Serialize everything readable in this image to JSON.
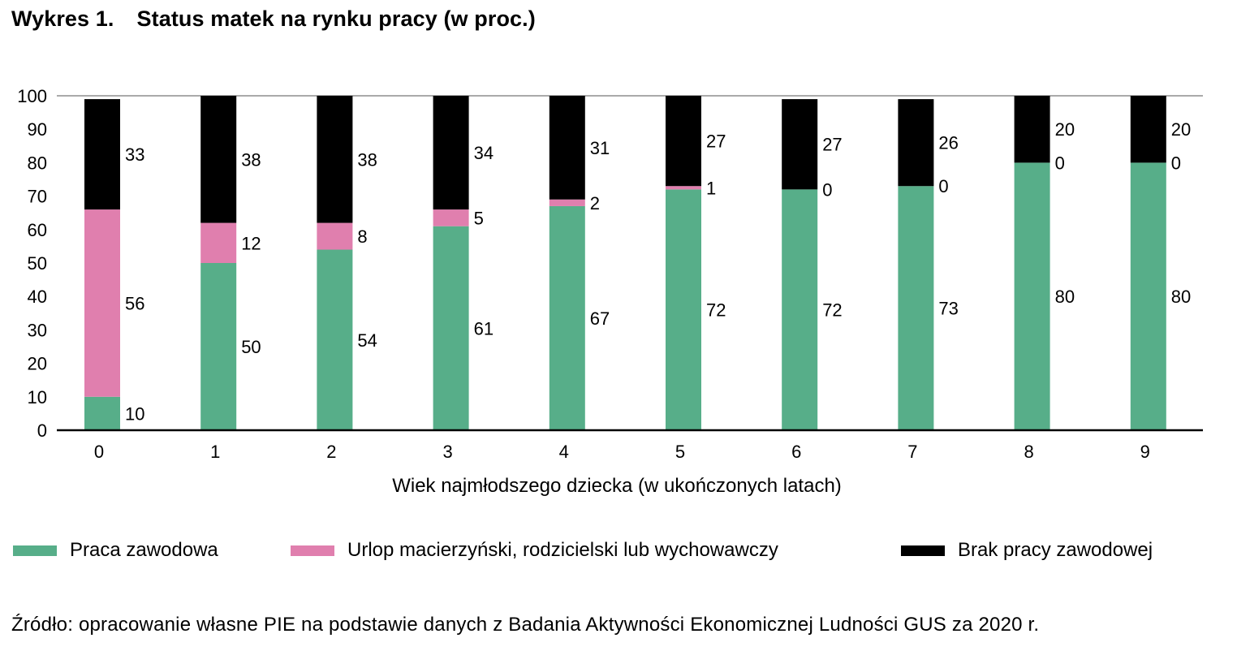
{
  "title_number": "Wykres 1.",
  "title_text": "Status matek na rynku pracy (w proc.)",
  "source": "Źródło: opracowanie własne PIE na podstawie danych z Badania Aktywności Ekonomicznej Ludności GUS za 2020 r.",
  "colors": {
    "praca": "#57ae89",
    "urlop": "#e07fae",
    "brak": "#000000"
  },
  "legend": [
    {
      "label": "Praca zawodowa",
      "color": "#57ae89"
    },
    {
      "label": "Urlop macierzyński, rodzicielski lub wychowawczy",
      "color": "#e07fae"
    },
    {
      "label": "Brak pracy zawodowej",
      "color": "#000000"
    }
  ],
  "chart_data": {
    "type": "bar",
    "stacked": true,
    "title": "Status matek na rynku pracy (w proc.)",
    "xlabel": "Wiek najmłodszego dziecka (w ukończonych latach)",
    "ylabel": "",
    "ylim": [
      0,
      100
    ],
    "yticks": [
      0,
      10,
      20,
      30,
      40,
      50,
      60,
      70,
      80,
      90,
      100
    ],
    "grid": false,
    "legend_position": "bottom",
    "categories": [
      "0",
      "1",
      "2",
      "3",
      "4",
      "5",
      "6",
      "7",
      "8",
      "9"
    ],
    "series": [
      {
        "name": "Praca zawodowa",
        "color": "#57ae89",
        "values": [
          10,
          50,
          54,
          61,
          67,
          72,
          72,
          73,
          80,
          80
        ]
      },
      {
        "name": "Urlop macierzyński, rodzicielski lub wychowawczy",
        "color": "#e07fae",
        "values": [
          56,
          12,
          8,
          5,
          2,
          1,
          0,
          0,
          0,
          0
        ]
      },
      {
        "name": "Brak pracy zawodowej",
        "color": "#000000",
        "values": [
          33,
          38,
          38,
          34,
          31,
          27,
          27,
          26,
          20,
          20
        ]
      }
    ]
  }
}
